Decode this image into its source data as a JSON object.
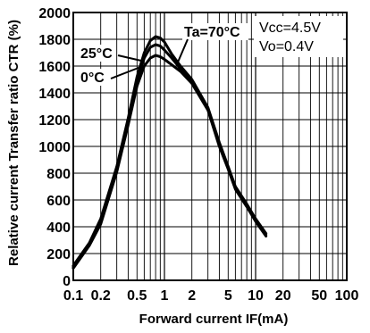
{
  "chart_data": {
    "type": "line",
    "xlabel": "Forward current IF(mA)",
    "ylabel": "Relative current Transfer ratio CTR (%)",
    "xscale": "log",
    "xlim": [
      0.1,
      100
    ],
    "ylim": [
      0,
      2000
    ],
    "grid": true,
    "x_ticks": [
      {
        "value": 0.1,
        "label": "0.1"
      },
      {
        "value": 0.2,
        "label": "0.2"
      },
      {
        "value": 0.5,
        "label": "0.5"
      },
      {
        "value": 1,
        "label": "1"
      },
      {
        "value": 2,
        "label": "2"
      },
      {
        "value": 5,
        "label": "5"
      },
      {
        "value": 10,
        "label": "10"
      },
      {
        "value": 20,
        "label": "20"
      },
      {
        "value": 50,
        "label": "50"
      },
      {
        "value": 100,
        "label": "100"
      }
    ],
    "y_ticks": [
      0,
      200,
      400,
      600,
      800,
      1000,
      1200,
      1400,
      1600,
      1800,
      2000
    ],
    "conditions": [
      "Vcc=4.5V",
      "Vo=0.4V"
    ],
    "series": [
      {
        "name": "Ta=70°C",
        "points": [
          [
            0.1,
            110
          ],
          [
            0.15,
            280
          ],
          [
            0.2,
            460
          ],
          [
            0.3,
            850
          ],
          [
            0.4,
            1210
          ],
          [
            0.5,
            1520
          ],
          [
            0.6,
            1700
          ],
          [
            0.7,
            1790
          ],
          [
            0.8,
            1820
          ],
          [
            0.9,
            1810
          ],
          [
            1,
            1780
          ],
          [
            1.2,
            1690
          ],
          [
            1.5,
            1600
          ],
          [
            2,
            1500
          ],
          [
            3,
            1290
          ],
          [
            4,
            1030
          ],
          [
            5,
            850
          ],
          [
            6,
            700
          ],
          [
            8,
            570
          ],
          [
            10,
            460
          ],
          [
            13,
            350
          ]
        ]
      },
      {
        "name": "25°C",
        "points": [
          [
            0.1,
            100
          ],
          [
            0.15,
            270
          ],
          [
            0.2,
            440
          ],
          [
            0.3,
            830
          ],
          [
            0.4,
            1190
          ],
          [
            0.5,
            1490
          ],
          [
            0.6,
            1660
          ],
          [
            0.7,
            1740
          ],
          [
            0.8,
            1760
          ],
          [
            0.9,
            1750
          ],
          [
            1,
            1720
          ],
          [
            1.2,
            1660
          ],
          [
            1.5,
            1580
          ],
          [
            2,
            1480
          ],
          [
            3,
            1280
          ],
          [
            4,
            1010
          ],
          [
            5,
            840
          ],
          [
            6,
            690
          ],
          [
            8,
            560
          ],
          [
            10,
            450
          ],
          [
            13,
            340
          ]
        ]
      },
      {
        "name": "0°C",
        "points": [
          [
            0.1,
            90
          ],
          [
            0.15,
            260
          ],
          [
            0.2,
            420
          ],
          [
            0.3,
            810
          ],
          [
            0.4,
            1160
          ],
          [
            0.5,
            1450
          ],
          [
            0.6,
            1600
          ],
          [
            0.7,
            1660
          ],
          [
            0.8,
            1680
          ],
          [
            0.9,
            1670
          ],
          [
            1,
            1650
          ],
          [
            1.2,
            1610
          ],
          [
            1.5,
            1560
          ],
          [
            2,
            1470
          ],
          [
            3,
            1270
          ],
          [
            4,
            1000
          ],
          [
            5,
            830
          ],
          [
            6,
            680
          ],
          [
            8,
            550
          ],
          [
            10,
            440
          ],
          [
            13,
            330
          ]
        ]
      }
    ]
  }
}
